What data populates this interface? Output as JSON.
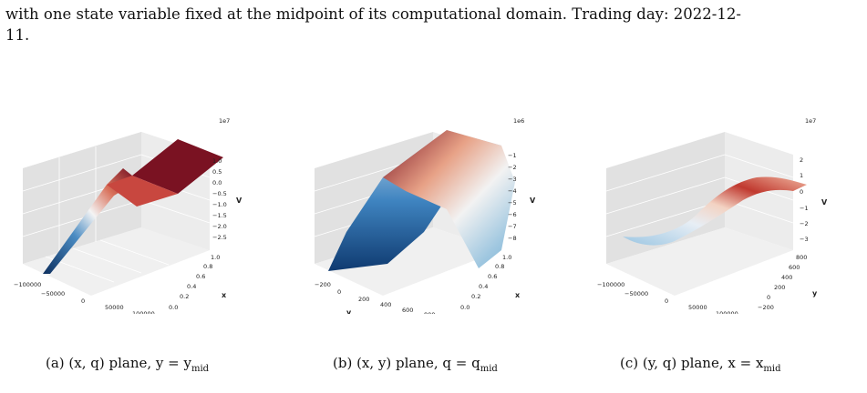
{
  "text": {
    "top_line_partial": "with one state variable fixed at the midpoint of its computational domain. Trading day: 2022-12-",
    "top_line_cont": "11."
  },
  "panels": [
    {
      "id": "a",
      "caption": "(a) (x, q) plane, y = y",
      "caption_sub": "mid",
      "offset": "1e7",
      "zlabel": "V",
      "xlabel": "q",
      "ylabel": "x",
      "xticks": [
        "−100000",
        "−50000",
        "0",
        "50000",
        "100000"
      ],
      "yticks": [
        "0.0",
        "0.2",
        "0.4",
        "0.6",
        "0.8",
        "1.0"
      ],
      "zticks": [
        "1.0",
        "0.5",
        "0.0",
        "−0.5",
        "−1.0",
        "−1.5",
        "−2.0",
        "−2.5"
      ]
    },
    {
      "id": "b",
      "caption": "(b) (x, y) plane, q = q",
      "caption_sub": "mid",
      "offset": "1e6",
      "zlabel": "V",
      "xlabel": "y",
      "ylabel": "x",
      "xticks": [
        "−200",
        "0",
        "200",
        "400",
        "600",
        "800"
      ],
      "yticks": [
        "0.0",
        "0.2",
        "0.4",
        "0.6",
        "0.8",
        "1.0"
      ],
      "zticks": [
        "−1",
        "−2",
        "−3",
        "−4",
        "−5",
        "−6",
        "−7",
        "−8"
      ]
    },
    {
      "id": "c",
      "caption": "(c) (y, q) plane, x = x",
      "caption_sub": "mid",
      "offset": "1e7",
      "zlabel": "V",
      "xlabel": "q",
      "ylabel": "y",
      "xticks": [
        "−100000",
        "−50000",
        "0",
        "50000",
        "100000"
      ],
      "yticks": [
        "−200",
        "0",
        "200",
        "400",
        "600",
        "800"
      ],
      "zticks": [
        "2",
        "1",
        "0",
        "−1",
        "−2",
        "−3"
      ]
    }
  ],
  "colors": {
    "pane": "#e6e6e6",
    "grid": "#ffffff",
    "dark_red": "#7f1020",
    "light": "#f2f2f2",
    "dark_blue": "#1d4e8a"
  }
}
